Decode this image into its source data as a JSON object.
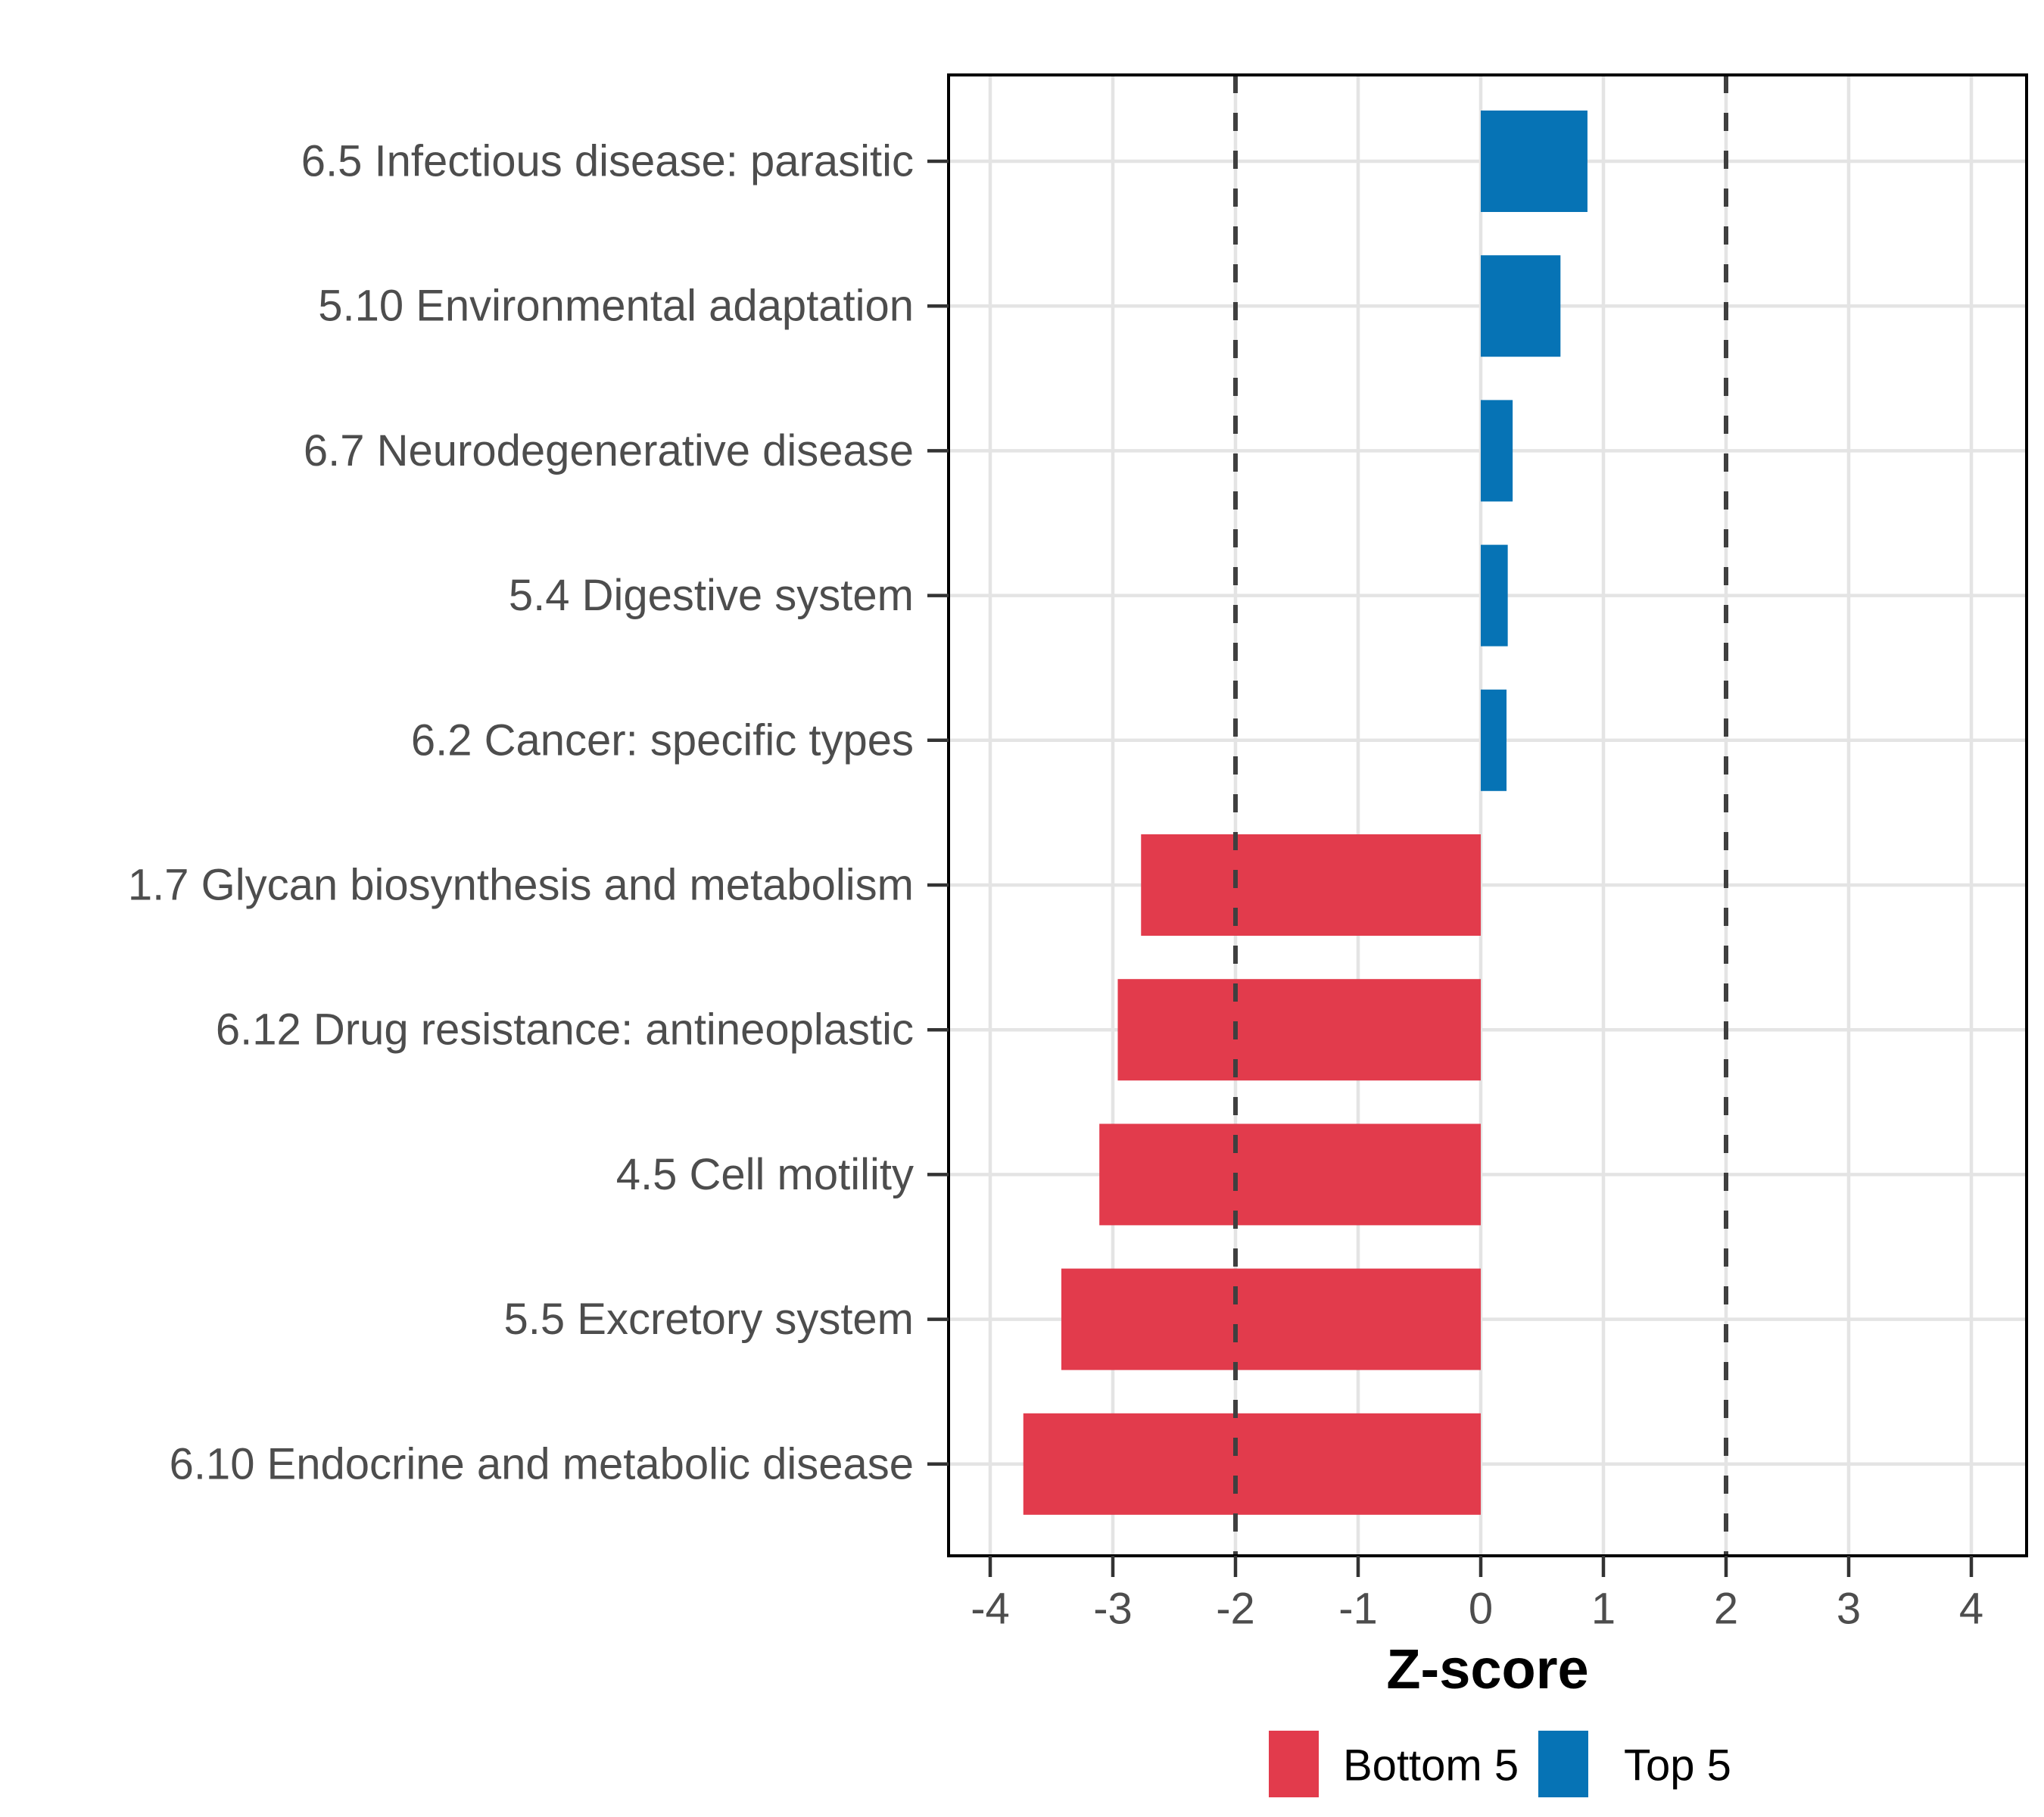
{
  "chart_data": {
    "type": "bar",
    "orientation": "horizontal",
    "title": "",
    "xlabel": "Z-score",
    "ylabel": "",
    "xlim": [
      -4.35,
      4.45
    ],
    "x_ticks": [
      -4,
      -3,
      -2,
      -1,
      0,
      1,
      2,
      3,
      4
    ],
    "grid": true,
    "reference_lines": [
      -2,
      2
    ],
    "categories": [
      "6.5 Infectious disease: parasitic",
      "5.10 Environmental adaptation",
      "6.7 Neurodegenerative disease",
      "5.4 Digestive system",
      "6.2 Cancer: specific types",
      "1.7 Glycan biosynthesis and metabolism",
      "6.12 Drug resistance: antineoplastic",
      "4.5 Cell motility",
      "5.5 Excretory system",
      "6.10 Endocrine and metabolic disease"
    ],
    "values": [
      0.87,
      0.65,
      0.26,
      0.22,
      0.21,
      -2.77,
      -2.96,
      -3.11,
      -3.42,
      -3.73
    ],
    "groups": [
      "Top 5",
      "Top 5",
      "Top 5",
      "Top 5",
      "Top 5",
      "Bottom 5",
      "Bottom 5",
      "Bottom 5",
      "Bottom 5",
      "Bottom 5"
    ],
    "colors": {
      "Top 5": "#0673B5",
      "Bottom 5": "#E23B4C"
    },
    "legend_position": "bottom",
    "legend": [
      {
        "label": "Bottom 5",
        "color": "#E23B4C"
      },
      {
        "label": "Top 5",
        "color": "#0673B5"
      }
    ],
    "style": {
      "panel_background": "#FFFFFF",
      "panel_border_color": "#000000",
      "grid_color": "#E4E4E4",
      "reference_line_color": "#3F3F3F",
      "tick_color": "#333333",
      "axis_text_color": "#4D4D4D"
    }
  }
}
